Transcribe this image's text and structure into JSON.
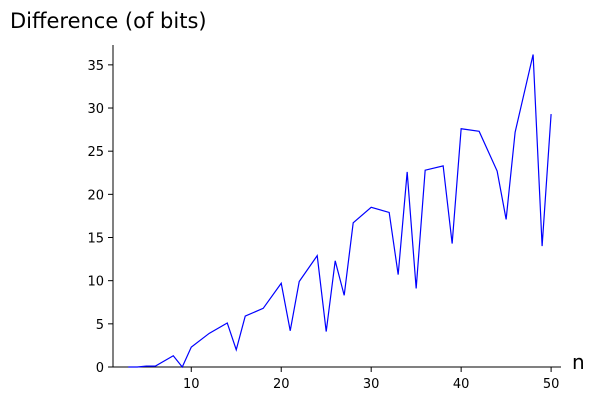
{
  "chart_data": {
    "type": "line",
    "title": "Difference (of bits)",
    "x_label": "n",
    "x": [
      3,
      4,
      5,
      6,
      8,
      9,
      10,
      12,
      14,
      15,
      16,
      18,
      20,
      21,
      22,
      24,
      25,
      26,
      27,
      28,
      30,
      32,
      33,
      34,
      35,
      36,
      38,
      39,
      40,
      42,
      44,
      45,
      46,
      48,
      49,
      50
    ],
    "series": [
      {
        "name": "difference",
        "color": "#0000ff",
        "values": [
          0,
          0,
          0.1,
          0.1,
          1.3,
          0,
          2.3,
          3.9,
          5.1,
          2.0,
          5.9,
          6.8,
          9.7,
          4.2,
          9.9,
          12.9,
          4.1,
          12.3,
          8.3,
          16.7,
          18.5,
          17.9,
          10.7,
          22.6,
          9.1,
          22.8,
          23.3,
          14.3,
          27.6,
          27.3,
          22.7,
          17.1,
          27.2,
          36.2,
          14.0,
          29.3
        ]
      }
    ],
    "xlim": [
      1.3,
      51.1
    ],
    "ylim": [
      0,
      37.3
    ],
    "xticks": [
      10,
      20,
      30,
      40,
      50
    ],
    "yticks": [
      0,
      5,
      10,
      15,
      20,
      25,
      30,
      35
    ]
  }
}
